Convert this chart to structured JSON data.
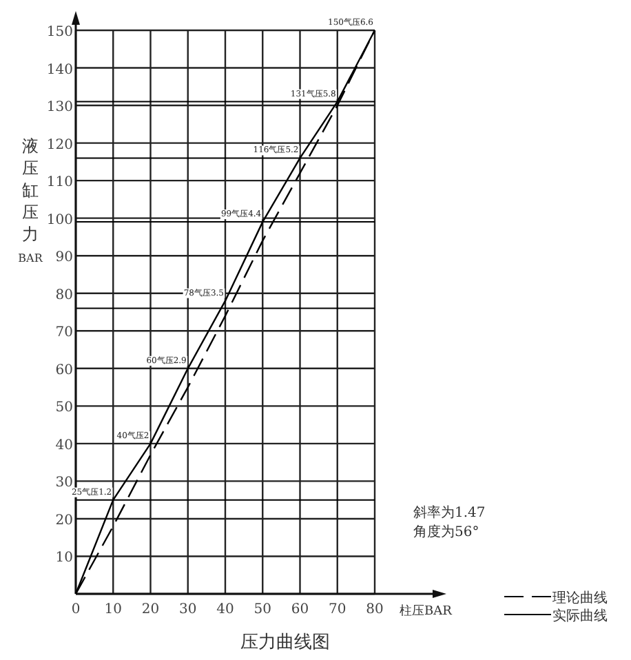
{
  "chart_data": {
    "type": "line",
    "title": "压力曲线图",
    "xlabel": "柱压BAR",
    "ylabel": "液压缸压力BAR",
    "xlim": [
      0,
      80
    ],
    "ylim": [
      0,
      150
    ],
    "xticks": [
      0,
      10,
      20,
      30,
      40,
      50,
      60,
      70,
      80
    ],
    "yticks": [
      {
        "value": 0,
        "label": null
      },
      10,
      20,
      30,
      40,
      50,
      60,
      70,
      80,
      90,
      100,
      110,
      120,
      130,
      140,
      150
    ],
    "grid": true,
    "legend": "bottom right",
    "x": [
      0,
      10,
      20,
      30,
      40,
      50,
      60,
      70,
      80
    ],
    "series": [
      {
        "name": "理论曲线",
        "color": "#000000",
        "line_style": "dashed",
        "values": [
          0,
          18,
          37,
          55,
          74,
          94,
          112,
          130,
          150
        ]
      },
      {
        "name": "实际曲线",
        "color": "#000000",
        "line_style": "solid",
        "values": [
          0,
          25,
          40,
          60,
          78,
          99,
          116,
          131,
          150
        ]
      }
    ],
    "ref_lines": [
      {
        "axis": "y",
        "value": 25,
        "color": "#000000"
      },
      {
        "axis": "y",
        "value": 76,
        "color": "#000000"
      },
      {
        "axis": "y",
        "value": 99,
        "color": "#000000"
      },
      {
        "axis": "y",
        "value": 116,
        "color": "#000000"
      },
      {
        "axis": "y",
        "value": 131,
        "color": "#000000"
      }
    ],
    "annotations": [
      {
        "text": "25气压1.2",
        "x": 10,
        "y": 25
      },
      {
        "text": "40气压2",
        "x": 20,
        "y": 40
      },
      {
        "text": "60气压2.9",
        "x": 30,
        "y": 60
      },
      {
        "text": "78气压3.5",
        "x": 40,
        "y": 78
      },
      {
        "text": "99气压4.4",
        "x": 50,
        "y": 99
      },
      {
        "text": "116气压5.2",
        "x": 60,
        "y": 116
      },
      {
        "text": "131气压5.8",
        "x": 70,
        "y": 131
      },
      {
        "text": "150气压6.6",
        "x": 80,
        "y": 150
      },
      "斜率为1.47",
      "角度为56°"
    ]
  }
}
